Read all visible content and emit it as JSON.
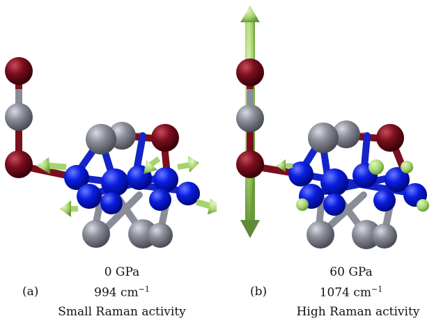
{
  "panels": [
    {
      "label": "(a)",
      "pressure": "0 GPa",
      "frequency_value": "994",
      "frequency_unit": "cm",
      "frequency_exp": "−1",
      "activity": "Small Raman activity"
    },
    {
      "label": "(b)",
      "pressure": "60 GPa",
      "frequency_value": "1074",
      "frequency_unit": "cm",
      "frequency_exp": "−1",
      "activity": "High Raman activity"
    }
  ],
  "colors": {
    "oxygen_dark_red": "#7a0f1e",
    "carbon_gray": "#8a8d98",
    "boron_blue": "#0a1ee0",
    "arrow_green": "#a6d46c"
  },
  "icons": [
    "displacement-arrow-icon",
    "atom-sphere-icon",
    "bond-icon"
  ]
}
